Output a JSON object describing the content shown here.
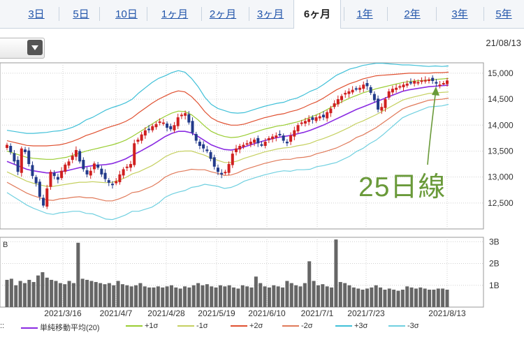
{
  "tabs": [
    {
      "label": "3日"
    },
    {
      "label": "5日"
    },
    {
      "label": "10日"
    },
    {
      "label": "1ヶ月"
    },
    {
      "label": "2ヶ月"
    },
    {
      "label": "3ヶ月"
    },
    {
      "label": "6ヶ月",
      "active": true
    },
    {
      "label": "1年"
    },
    {
      "label": "2年"
    },
    {
      "label": "3年"
    },
    {
      "label": "5年"
    }
  ],
  "date_label": "21/08/13",
  "annotation": "25日線",
  "legend": {
    "prefix": "::",
    "items": [
      {
        "label": "単純移動平均(20)",
        "color": "#8a2be2"
      },
      {
        "label": "+1σ",
        "color": "#9acd32"
      },
      {
        "label": "-1σ",
        "color": "#c5d060"
      },
      {
        "label": "+2σ",
        "color": "#e05030"
      },
      {
        "label": "-2σ",
        "color": "#e07a5a"
      },
      {
        "label": "+3σ",
        "color": "#40c0d8"
      },
      {
        "label": "-3σ",
        "color": "#70d0e0"
      }
    ]
  },
  "chart_data": [
    {
      "type": "candlestick",
      "description_role": "price",
      "y_ticks": [
        "15,000",
        "14,500",
        "14,000",
        "13,500",
        "13,000",
        "12,500"
      ],
      "ylim": [
        12000,
        15200
      ],
      "x_tick_labels": [
        "2021/3/16",
        "2021/4/7",
        "2021/4/28",
        "2021/5/19",
        "2021/6/10",
        "2021/7/1",
        "2021/7/23",
        "2021/8/13"
      ],
      "close": [
        13620,
        13480,
        13300,
        13100,
        13550,
        13480,
        13250,
        13020,
        12880,
        12620,
        12450,
        12780,
        13100,
        13020,
        12950,
        13120,
        13240,
        13300,
        13410,
        13520,
        13300,
        13150,
        13050,
        13120,
        13260,
        13180,
        13050,
        12960,
        12890,
        12850,
        12920,
        13050,
        13150,
        13200,
        13250,
        13650,
        13720,
        13820,
        13900,
        13920,
        13980,
        14020,
        14070,
        14050,
        13950,
        13920,
        14000,
        14150,
        14200,
        14230,
        14050,
        13850,
        13700,
        13600,
        13550,
        13500,
        13350,
        13200,
        13100,
        13050,
        13100,
        13250,
        13450,
        13550,
        13600,
        13620,
        13650,
        13680,
        13720,
        13650,
        13620,
        13680,
        13750,
        13780,
        13800,
        13820,
        13700,
        13650,
        13800,
        13900,
        14000,
        14050,
        14080,
        14120,
        14100,
        14150,
        14170,
        14150,
        14250,
        14320,
        14420,
        14500,
        14560,
        14620,
        14650,
        14680,
        14700,
        14720,
        14780,
        14750,
        14620,
        14480,
        14300,
        14350,
        14500,
        14650,
        14700,
        14720,
        14750,
        14780,
        14800,
        14820,
        14850,
        14830,
        14860,
        14870,
        14880,
        14850,
        14800,
        14780,
        14810,
        14860
      ],
      "bands": {
        "ma20": [
          13300,
          13250,
          13200,
          13150,
          13120,
          13100,
          13080,
          13080,
          13100,
          13120,
          13150,
          13180,
          13200,
          13220,
          13230,
          13240,
          13260,
          13300,
          13350,
          13420,
          13480,
          13550,
          13620,
          13700,
          13780,
          13840,
          13880,
          13880,
          13850,
          13780,
          13700,
          13620,
          13570,
          13530,
          13520,
          13540,
          13580,
          13620,
          13660,
          13700,
          13730,
          13760,
          13780,
          13800,
          13830,
          13860,
          13900,
          13950,
          14000,
          14060,
          14120,
          14180,
          14240,
          14300,
          14350,
          14400,
          14450,
          14500,
          14550,
          14600,
          14650,
          14680,
          14700,
          14720,
          14740,
          14750,
          14760,
          14770
        ],
        "up1": [
          13500,
          13460,
          13420,
          13380,
          13360,
          13350,
          13340,
          13340,
          13360,
          13380,
          13420,
          13460,
          13500,
          13530,
          13560,
          13590,
          13620,
          13660,
          13710,
          13780,
          13860,
          13940,
          14020,
          14100,
          14170,
          14230,
          14270,
          14260,
          14200,
          14100,
          13980,
          13880,
          13820,
          13780,
          13760,
          13770,
          13800,
          13840,
          13880,
          13920,
          13950,
          13980,
          14000,
          14030,
          14060,
          14100,
          14150,
          14200,
          14260,
          14330,
          14400,
          14460,
          14520,
          14570,
          14620,
          14660,
          14700,
          14730,
          14760,
          14790,
          14820,
          14840,
          14850,
          14860,
          14870,
          14880,
          14890,
          14900
        ],
        "dn1": [
          13100,
          13040,
          12980,
          12920,
          12880,
          12850,
          12820,
          12820,
          12840,
          12860,
          12880,
          12900,
          12900,
          12910,
          12900,
          12890,
          12900,
          12940,
          12990,
          13060,
          13100,
          13160,
          13220,
          13300,
          13390,
          13450,
          13490,
          13500,
          13500,
          13460,
          13420,
          13360,
          13320,
          13280,
          13280,
          13310,
          13360,
          13400,
          13440,
          13480,
          13510,
          13540,
          13560,
          13570,
          13600,
          13620,
          13650,
          13700,
          13740,
          13790,
          13840,
          13900,
          13960,
          14030,
          14080,
          14140,
          14200,
          14270,
          14340,
          14410,
          14480,
          14520,
          14550,
          14580,
          14610,
          14620,
          14630,
          14640
        ],
        "up2": [
          13700,
          13670,
          13640,
          13610,
          13600,
          13600,
          13600,
          13610,
          13620,
          13650,
          13690,
          13740,
          13800,
          13840,
          13890,
          13940,
          13980,
          14020,
          14070,
          14140,
          14240,
          14330,
          14420,
          14500,
          14560,
          14620,
          14660,
          14640,
          14550,
          14420,
          14260,
          14140,
          14070,
          14030,
          14000,
          14000,
          14020,
          14060,
          14100,
          14140,
          14170,
          14200,
          14220,
          14260,
          14290,
          14340,
          14400,
          14450,
          14520,
          14600,
          14680,
          14740,
          14800,
          14840,
          14890,
          14920,
          14950,
          14960,
          14970,
          14980,
          14990,
          15000,
          15000,
          15000,
          15000,
          15010,
          15010,
          15020
        ],
        "dn2": [
          12900,
          12830,
          12760,
          12690,
          12640,
          12600,
          12560,
          12550,
          12580,
          12590,
          12610,
          12620,
          12600,
          12600,
          12570,
          12540,
          12540,
          12580,
          12630,
          12700,
          12720,
          12770,
          12820,
          12900,
          13000,
          13060,
          13100,
          13120,
          13150,
          13140,
          13140,
          13100,
          13070,
          13030,
          13040,
          13080,
          13140,
          13180,
          13220,
          13260,
          13290,
          13320,
          13340,
          13340,
          13370,
          13380,
          13400,
          13450,
          13480,
          13520,
          13560,
          13620,
          13680,
          13760,
          13810,
          13880,
          13950,
          14040,
          14130,
          14220,
          14310,
          14360,
          14400,
          14440,
          14480,
          14490,
          14500,
          14520
        ],
        "up3": [
          13900,
          13880,
          13860,
          13840,
          13840,
          13850,
          13860,
          13880,
          13890,
          13920,
          13960,
          14020,
          14100,
          14150,
          14220,
          14290,
          14340,
          14380,
          14430,
          14500,
          14620,
          14720,
          14820,
          14900,
          14950,
          15010,
          15050,
          15020,
          14900,
          14740,
          14540,
          14400,
          14320,
          14280,
          14240,
          14230,
          14240,
          14280,
          14320,
          14360,
          14390,
          14420,
          14440,
          14490,
          14520,
          14580,
          14650,
          14700,
          14780,
          14870,
          14960,
          15020,
          15080,
          15110,
          15150,
          15170,
          15190,
          15190,
          15180,
          15170,
          15160,
          15160,
          15150,
          15140,
          15130,
          15140,
          15130,
          15140
        ],
        "dn3": [
          12700,
          12620,
          12540,
          12460,
          12400,
          12350,
          12300,
          12280,
          12310,
          12320,
          12340,
          12340,
          12300,
          12290,
          12240,
          12190,
          12180,
          12220,
          12270,
          12340,
          12340,
          12380,
          12420,
          12500,
          12610,
          12670,
          12710,
          12740,
          12800,
          12820,
          12860,
          12840,
          12820,
          12780,
          12800,
          12850,
          12920,
          12960,
          13000,
          13040,
          13070,
          13100,
          13120,
          13110,
          13140,
          13140,
          13150,
          13200,
          13220,
          13250,
          13280,
          13340,
          13400,
          13490,
          13550,
          13640,
          13710,
          13810,
          13920,
          14030,
          14140,
          14200,
          14250,
          14300,
          14350,
          14360,
          14370,
          14400
        ]
      }
    },
    {
      "type": "bar",
      "description_role": "volume",
      "y_ticks": [
        "3B",
        "2B",
        "1B"
      ],
      "ylim": [
        0,
        3.2
      ],
      "values": [
        1.25,
        1.3,
        1.0,
        1.2,
        1.1,
        1.25,
        1.15,
        1.45,
        1.6,
        1.35,
        1.25,
        1.2,
        1.1,
        1.05,
        1.2,
        1.1,
        2.95,
        1.3,
        1.25,
        1.2,
        1.15,
        1.1,
        1.05,
        1.1,
        1.0,
        1.2,
        1.05,
        1.0,
        0.95,
        1.0,
        1.1,
        0.95,
        0.9,
        0.9,
        0.95,
        0.9,
        0.95,
        1.0,
        0.9,
        0.85,
        0.95,
        0.9,
        1.0,
        1.1,
        1.0,
        1.05,
        0.95,
        0.9,
        1.0,
        0.95,
        1.0,
        0.9,
        0.85,
        1.0,
        0.95,
        0.9,
        1.4,
        1.1,
        0.95,
        0.9,
        1.0,
        0.95,
        0.9,
        1.2,
        1.1,
        1.0,
        0.95,
        1.1,
        2.1,
        1.2,
        1.0,
        1.05,
        0.95,
        0.9,
        3.1,
        1.15,
        1.1,
        1.0,
        0.9,
        0.85,
        0.8,
        0.85,
        0.9,
        1.0,
        0.9,
        0.8,
        0.85,
        0.8,
        0.75,
        0.8,
        0.95,
        0.9,
        0.85,
        0.9,
        0.85,
        0.8,
        0.8,
        0.85,
        0.85,
        0.8
      ]
    }
  ]
}
